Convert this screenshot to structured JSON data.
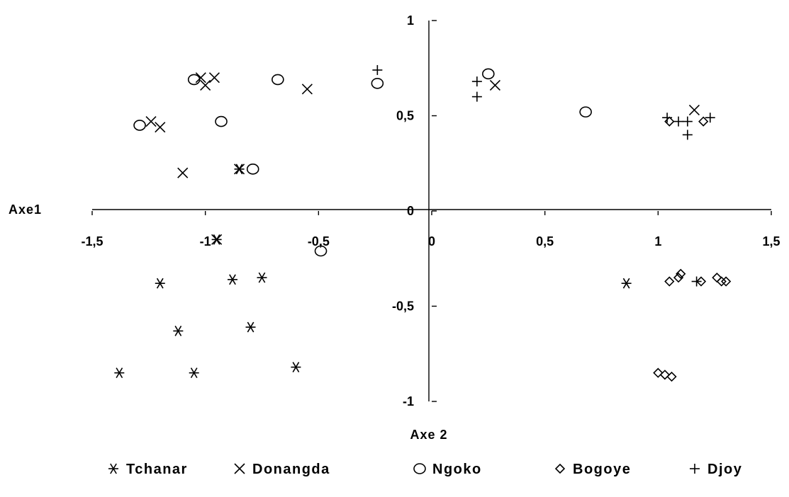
{
  "chart_data": {
    "type": "scatter",
    "xlabel": "Axe1",
    "ylabel": "Axe 2",
    "xlim": [
      -1.5,
      1.5
    ],
    "ylim": [
      -1,
      1
    ],
    "x_ticks": [
      {
        "value": -1.5,
        "label": "-1,5"
      },
      {
        "value": -1,
        "label": "-1"
      },
      {
        "value": -0.5,
        "label": "-0,5"
      },
      {
        "value": 0,
        "label": "0"
      },
      {
        "value": 0.5,
        "label": "0,5"
      },
      {
        "value": 1,
        "label": "1"
      },
      {
        "value": 1.5,
        "label": "1,5"
      }
    ],
    "y_ticks": [
      {
        "value": 1,
        "label": "1"
      },
      {
        "value": 0.5,
        "label": "0,5"
      },
      {
        "value": 0,
        "label": "0"
      },
      {
        "value": -0.5,
        "label": "-0,5"
      },
      {
        "value": -1,
        "label": "-1"
      }
    ],
    "grid": false,
    "legend_position": "bottom",
    "series": [
      {
        "name": "Tchanar",
        "marker": "asterisk",
        "points": [
          [
            -0.85,
            0.22
          ],
          [
            -0.95,
            -0.15
          ],
          [
            -1.2,
            -0.38
          ],
          [
            -0.88,
            -0.36
          ],
          [
            -0.75,
            -0.35
          ],
          [
            -1.12,
            -0.63
          ],
          [
            -0.8,
            -0.61
          ],
          [
            -1.38,
            -0.85
          ],
          [
            -1.05,
            -0.85
          ],
          [
            -0.6,
            -0.82
          ],
          [
            0.86,
            -0.38
          ]
        ]
      },
      {
        "name": "Donangda",
        "marker": "x",
        "points": [
          [
            -1.02,
            0.7
          ],
          [
            -0.96,
            0.7
          ],
          [
            -1.0,
            0.66
          ],
          [
            -0.55,
            0.64
          ],
          [
            -1.24,
            0.47
          ],
          [
            -1.2,
            0.44
          ],
          [
            -1.1,
            0.2
          ],
          [
            -0.85,
            0.22
          ],
          [
            -0.95,
            -0.15
          ],
          [
            0.28,
            0.66
          ],
          [
            1.16,
            0.53
          ]
        ]
      },
      {
        "name": "Ngoko",
        "marker": "circle",
        "points": [
          [
            -1.05,
            0.69
          ],
          [
            -0.68,
            0.69
          ],
          [
            -1.29,
            0.45
          ],
          [
            -0.93,
            0.47
          ],
          [
            -0.79,
            0.22
          ],
          [
            -0.24,
            0.67
          ],
          [
            0.25,
            0.72
          ],
          [
            0.68,
            0.52
          ],
          [
            -0.49,
            -0.21
          ]
        ]
      },
      {
        "name": "Bogoye",
        "marker": "diamond",
        "points": [
          [
            1.05,
            0.47
          ],
          [
            1.2,
            0.47
          ],
          [
            1.05,
            -0.37
          ],
          [
            1.09,
            -0.35
          ],
          [
            1.1,
            -0.33
          ],
          [
            1.19,
            -0.37
          ],
          [
            1.26,
            -0.35
          ],
          [
            1.28,
            -0.37
          ],
          [
            1.3,
            -0.37
          ],
          [
            1.0,
            -0.85
          ],
          [
            1.03,
            -0.86
          ],
          [
            1.06,
            -0.87
          ]
        ]
      },
      {
        "name": "Djoy",
        "marker": "plus",
        "points": [
          [
            -0.24,
            0.74
          ],
          [
            0.2,
            0.68
          ],
          [
            0.2,
            0.6
          ],
          [
            1.04,
            0.49
          ],
          [
            1.09,
            0.47
          ],
          [
            1.13,
            0.47
          ],
          [
            1.13,
            0.4
          ],
          [
            1.23,
            0.49
          ],
          [
            1.17,
            -0.37
          ]
        ]
      }
    ]
  }
}
